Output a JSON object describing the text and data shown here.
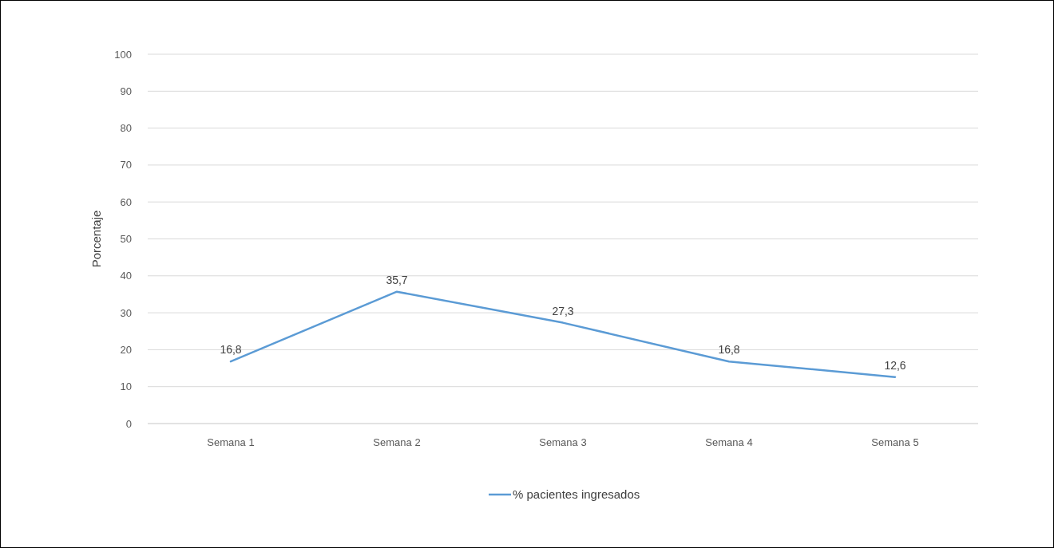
{
  "chart_data": {
    "type": "line",
    "ylabel": "Porcentaje",
    "categories": [
      "Semana 1",
      "Semana 2",
      "Semana 3",
      "Semana 4",
      "Semana 5"
    ],
    "series": [
      {
        "name": "% pacientes ingresados",
        "color": "#5b9bd5",
        "values": [
          16.8,
          35.7,
          27.3,
          16.8,
          12.6
        ],
        "value_labels": [
          "16,8",
          "35,7",
          "27,3",
          "16,8",
          "12,6"
        ]
      }
    ],
    "ylim": [
      0,
      100
    ],
    "yticks": [
      0,
      10,
      20,
      30,
      40,
      50,
      60,
      70,
      80,
      90,
      100
    ],
    "grid": "y",
    "legend": "bottom",
    "marker": "none",
    "line_style": "solid"
  }
}
